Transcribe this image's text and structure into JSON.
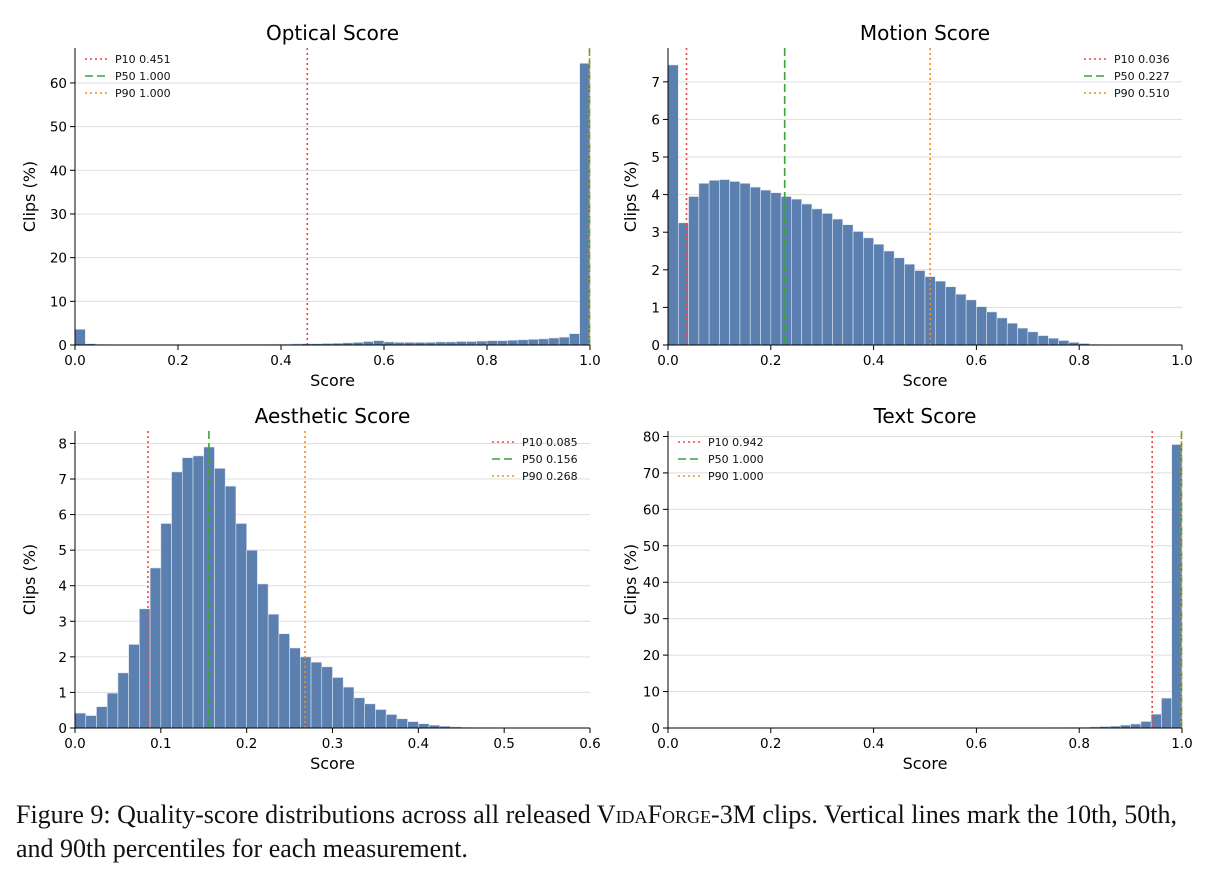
{
  "colors": {
    "bar": "#5b80b0",
    "bar_edge": "#dfe7f1",
    "p10": "#e8484a",
    "p50": "#3aa33a",
    "p90": "#f28a21",
    "grid": "#dedede"
  },
  "chart_data": [
    {
      "type": "bar",
      "title": "Optical Score",
      "xlabel": "Score",
      "ylabel": "Clips (%)",
      "xlim": [
        0,
        1
      ],
      "ylim": [
        0,
        68
      ],
      "xticks": [
        0,
        0.2,
        0.4,
        0.6,
        0.8,
        1
      ],
      "xtick_labels": [
        "0.0",
        "0.2",
        "0.4",
        "0.6",
        "0.8",
        "1.0"
      ],
      "yticks": [
        0,
        10,
        20,
        30,
        40,
        50,
        60
      ],
      "ytick_labels": [
        "0",
        "10",
        "20",
        "30",
        "40",
        "50",
        "60"
      ],
      "bin_start": 0,
      "bin_width": 0.02,
      "values": [
        3.6,
        0.3,
        0.15,
        0.1,
        0.1,
        0.1,
        0.1,
        0.1,
        0.1,
        0.1,
        0.1,
        0.1,
        0.1,
        0.1,
        0.1,
        0.1,
        0.15,
        0.15,
        0.15,
        0.2,
        0.2,
        0.25,
        0.3,
        0.3,
        0.35,
        0.4,
        0.5,
        0.6,
        0.8,
        1.0,
        0.7,
        0.6,
        0.6,
        0.6,
        0.6,
        0.7,
        0.7,
        0.8,
        0.8,
        0.9,
        1.0,
        1.0,
        1.1,
        1.2,
        1.3,
        1.4,
        1.6,
        1.8,
        2.6,
        64.5
      ],
      "percentiles": [
        {
          "label": "P10 0.451",
          "value": 0.451,
          "style": "dotted",
          "color_key": "p10"
        },
        {
          "label": "P50 1.000",
          "value": 1.0,
          "style": "dashed",
          "color_key": "p50"
        },
        {
          "label": "P90 1.000",
          "value": 1.0,
          "style": "dotted",
          "color_key": "p90"
        }
      ],
      "legend_position": "top-left",
      "grid": "horizontal"
    },
    {
      "type": "bar",
      "title": "Motion Score",
      "xlabel": "Score",
      "ylabel": "Clips (%)",
      "xlim": [
        0,
        1
      ],
      "ylim": [
        0,
        7.9
      ],
      "xticks": [
        0,
        0.2,
        0.4,
        0.6,
        0.8,
        1
      ],
      "xtick_labels": [
        "0.0",
        "0.2",
        "0.4",
        "0.6",
        "0.8",
        "1.0"
      ],
      "yticks": [
        0,
        1,
        2,
        3,
        4,
        5,
        6,
        7
      ],
      "ytick_labels": [
        "0",
        "1",
        "2",
        "3",
        "4",
        "5",
        "6",
        "7"
      ],
      "bin_start": 0,
      "bin_width": 0.02,
      "values": [
        7.45,
        3.25,
        3.95,
        4.3,
        4.38,
        4.4,
        4.35,
        4.3,
        4.2,
        4.12,
        4.05,
        3.95,
        3.88,
        3.75,
        3.62,
        3.5,
        3.35,
        3.2,
        3.02,
        2.85,
        2.68,
        2.5,
        2.32,
        2.15,
        1.98,
        1.82,
        1.7,
        1.55,
        1.35,
        1.2,
        1.02,
        0.88,
        0.72,
        0.58,
        0.45,
        0.35,
        0.25,
        0.18,
        0.12,
        0.07,
        0.04,
        0.02,
        0.01,
        0.0,
        0.0,
        0.0,
        0.0,
        0.0,
        0.0,
        0.0
      ],
      "percentiles": [
        {
          "label": "P10 0.036",
          "value": 0.036,
          "style": "dotted",
          "color_key": "p10"
        },
        {
          "label": "P50 0.227",
          "value": 0.227,
          "style": "dashed",
          "color_key": "p50"
        },
        {
          "label": "P90 0.510",
          "value": 0.51,
          "style": "dotted",
          "color_key": "p90"
        }
      ],
      "legend_position": "top-right",
      "grid": "horizontal"
    },
    {
      "type": "bar",
      "title": "Aesthetic Score",
      "xlabel": "Score",
      "ylabel": "Clips (%)",
      "xlim": [
        0,
        0.6
      ],
      "ylim": [
        0,
        8.35
      ],
      "xticks": [
        0,
        0.1,
        0.2,
        0.3,
        0.4,
        0.5,
        0.6
      ],
      "xtick_labels": [
        "0.0",
        "0.1",
        "0.2",
        "0.3",
        "0.4",
        "0.5",
        "0.6"
      ],
      "yticks": [
        0,
        1,
        2,
        3,
        4,
        5,
        6,
        7,
        8
      ],
      "ytick_labels": [
        "0",
        "1",
        "2",
        "3",
        "4",
        "5",
        "6",
        "7",
        "8"
      ],
      "bin_start": 0,
      "bin_width": 0.0125,
      "values": [
        0.42,
        0.35,
        0.6,
        0.98,
        1.55,
        2.35,
        3.35,
        4.5,
        5.75,
        7.2,
        7.6,
        7.65,
        7.9,
        7.3,
        6.8,
        5.75,
        5.0,
        4.05,
        3.2,
        2.65,
        2.25,
        2.0,
        1.85,
        1.72,
        1.42,
        1.15,
        0.85,
        0.68,
        0.52,
        0.38,
        0.26,
        0.18,
        0.12,
        0.08,
        0.05,
        0.03,
        0.02,
        0.01,
        0.01,
        0.0,
        0.0,
        0.0,
        0.0,
        0.0,
        0.0,
        0.0,
        0.0,
        0.0
      ],
      "percentiles": [
        {
          "label": "P10 0.085",
          "value": 0.085,
          "style": "dotted",
          "color_key": "p10"
        },
        {
          "label": "P50 0.156",
          "value": 0.156,
          "style": "dashed",
          "color_key": "p50"
        },
        {
          "label": "P90 0.268",
          "value": 0.268,
          "style": "dotted",
          "color_key": "p90"
        }
      ],
      "legend_position": "top-right",
      "grid": "horizontal"
    },
    {
      "type": "bar",
      "title": "Text Score",
      "xlabel": "Score",
      "ylabel": "Clips (%)",
      "xlim": [
        0,
        1
      ],
      "ylim": [
        0,
        81.5
      ],
      "xticks": [
        0,
        0.2,
        0.4,
        0.6,
        0.8,
        1
      ],
      "xtick_labels": [
        "0.0",
        "0.2",
        "0.4",
        "0.6",
        "0.8",
        "1.0"
      ],
      "yticks": [
        0,
        10,
        20,
        30,
        40,
        50,
        60,
        70,
        80
      ],
      "ytick_labels": [
        "0",
        "10",
        "20",
        "30",
        "40",
        "50",
        "60",
        "70",
        "80"
      ],
      "bin_start": 0,
      "bin_width": 0.02,
      "values": [
        0,
        0,
        0,
        0,
        0,
        0,
        0,
        0,
        0,
        0,
        0,
        0,
        0,
        0,
        0,
        0,
        0,
        0,
        0,
        0,
        0,
        0,
        0,
        0,
        0,
        0,
        0,
        0,
        0,
        0,
        0.05,
        0.05,
        0.05,
        0.05,
        0.05,
        0.05,
        0.05,
        0.1,
        0.1,
        0.15,
        0.2,
        0.3,
        0.4,
        0.5,
        0.8,
        1.1,
        1.8,
        3.8,
        8.2,
        77.8
      ],
      "percentiles": [
        {
          "label": "P10 0.942",
          "value": 0.942,
          "style": "dotted",
          "color_key": "p10"
        },
        {
          "label": "P50 1.000",
          "value": 1.0,
          "style": "dashed",
          "color_key": "p50"
        },
        {
          "label": "P90 1.000",
          "value": 1.0,
          "style": "dotted",
          "color_key": "p90"
        }
      ],
      "legend_position": "top-left",
      "grid": "horizontal"
    }
  ],
  "caption": {
    "prefix": "Figure 9: Quality-score distributions across all released ",
    "name_v": "V",
    "name_ida": "ida",
    "name_f": "F",
    "name_orge": "orge",
    "name_suffix": "-3M",
    "suffix": " clips. Vertical lines mark the 10th, 50th, and 90th percentiles for each measurement."
  }
}
